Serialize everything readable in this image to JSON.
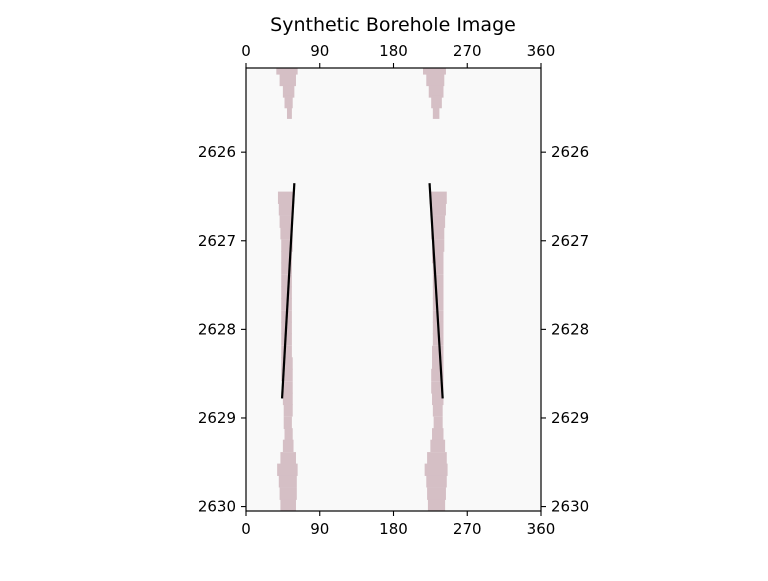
{
  "chart_data": {
    "type": "heatmap",
    "title": "Synthetic Borehole Image",
    "xlabel": "",
    "ylabel": "",
    "xlim": [
      0,
      360
    ],
    "ylim": [
      2630.05,
      2625.05
    ],
    "y_inverted": true,
    "x_ticks": [
      0,
      90,
      180,
      270,
      360
    ],
    "x_tick_labels": [
      "0",
      "90",
      "180",
      "270",
      "360"
    ],
    "y_ticks": [
      2626,
      2627,
      2628,
      2629,
      2630
    ],
    "y_tick_labels": [
      "2626",
      "2627",
      "2628",
      "2629",
      "2630"
    ],
    "ticks_on": [
      "top",
      "bottom",
      "left",
      "right"
    ],
    "grid": false,
    "background_color": "#f9f9f9",
    "feature_color": "#d5bfc5",
    "line_color": "#000000",
    "features": [
      {
        "name": "",
        "bands": [
          {
            "depth": 2625.12,
            "x0": 37,
            "x1": 63
          },
          {
            "depth": 2625.25,
            "x0": 41,
            "x1": 61
          },
          {
            "depth": 2625.38,
            "x0": 45,
            "x1": 59
          },
          {
            "depth": 2625.5,
            "x0": 47,
            "x1": 57
          },
          {
            "depth": 2625.62,
            "x0": 50,
            "x1": 56
          }
        ]
      },
      {
        "name": "",
        "bands": [
          {
            "depth": 2625.12,
            "x0": 216,
            "x1": 244
          },
          {
            "depth": 2625.25,
            "x0": 220,
            "x1": 242
          },
          {
            "depth": 2625.38,
            "x0": 223,
            "x1": 241
          },
          {
            "depth": 2625.5,
            "x0": 226,
            "x1": 239
          },
          {
            "depth": 2625.62,
            "x0": 228,
            "x1": 236
          }
        ]
      },
      {
        "name": "",
        "bands": [
          {
            "depth": 2626.58,
            "x0": 39,
            "x1": 59
          },
          {
            "depth": 2626.71,
            "x0": 40,
            "x1": 58
          },
          {
            "depth": 2626.85,
            "x0": 41,
            "x1": 57
          },
          {
            "depth": 2626.98,
            "x0": 42,
            "x1": 57
          },
          {
            "depth": 2627.12,
            "x0": 43,
            "x1": 57
          },
          {
            "depth": 2627.25,
            "x0": 43,
            "x1": 56
          },
          {
            "depth": 2627.38,
            "x0": 43,
            "x1": 56
          },
          {
            "depth": 2627.52,
            "x0": 43,
            "x1": 56
          },
          {
            "depth": 2627.65,
            "x0": 43,
            "x1": 56
          },
          {
            "depth": 2627.78,
            "x0": 43,
            "x1": 56
          },
          {
            "depth": 2627.92,
            "x0": 43,
            "x1": 56
          },
          {
            "depth": 2628.05,
            "x0": 43,
            "x1": 56
          },
          {
            "depth": 2628.18,
            "x0": 43,
            "x1": 56
          },
          {
            "depth": 2628.32,
            "x0": 43,
            "x1": 56
          },
          {
            "depth": 2628.45,
            "x0": 43,
            "x1": 57
          },
          {
            "depth": 2628.58,
            "x0": 43,
            "x1": 57
          },
          {
            "depth": 2628.72,
            "x0": 44,
            "x1": 57
          },
          {
            "depth": 2628.85,
            "x0": 45,
            "x1": 57
          },
          {
            "depth": 2628.98,
            "x0": 46,
            "x1": 57
          },
          {
            "depth": 2629.12,
            "x0": 46,
            "x1": 56
          },
          {
            "depth": 2629.25,
            "x0": 47,
            "x1": 57
          },
          {
            "depth": 2629.38,
            "x0": 45,
            "x1": 58
          },
          {
            "depth": 2629.52,
            "x0": 42,
            "x1": 61
          },
          {
            "depth": 2629.65,
            "x0": 38,
            "x1": 63
          },
          {
            "depth": 2629.78,
            "x0": 40,
            "x1": 62
          },
          {
            "depth": 2629.92,
            "x0": 41,
            "x1": 62
          },
          {
            "depth": 2630.05,
            "x0": 42,
            "x1": 61
          }
        ]
      },
      {
        "name": "",
        "bands": [
          {
            "depth": 2626.58,
            "x0": 224,
            "x1": 245
          },
          {
            "depth": 2626.71,
            "x0": 225,
            "x1": 244
          },
          {
            "depth": 2626.85,
            "x0": 226,
            "x1": 243
          },
          {
            "depth": 2626.98,
            "x0": 226,
            "x1": 242
          },
          {
            "depth": 2627.12,
            "x0": 227,
            "x1": 242
          },
          {
            "depth": 2627.25,
            "x0": 227,
            "x1": 241
          },
          {
            "depth": 2627.38,
            "x0": 228,
            "x1": 241
          },
          {
            "depth": 2627.52,
            "x0": 228,
            "x1": 241
          },
          {
            "depth": 2627.65,
            "x0": 228,
            "x1": 241
          },
          {
            "depth": 2627.78,
            "x0": 228,
            "x1": 241
          },
          {
            "depth": 2627.92,
            "x0": 228,
            "x1": 241
          },
          {
            "depth": 2628.05,
            "x0": 228,
            "x1": 241
          },
          {
            "depth": 2628.18,
            "x0": 228,
            "x1": 241
          },
          {
            "depth": 2628.32,
            "x0": 227,
            "x1": 241
          },
          {
            "depth": 2628.45,
            "x0": 227,
            "x1": 241
          },
          {
            "depth": 2628.58,
            "x0": 226,
            "x1": 241
          },
          {
            "depth": 2628.72,
            "x0": 226,
            "x1": 241
          },
          {
            "depth": 2628.85,
            "x0": 227,
            "x1": 241
          },
          {
            "depth": 2628.98,
            "x0": 228,
            "x1": 240
          },
          {
            "depth": 2629.12,
            "x0": 229,
            "x1": 240
          },
          {
            "depth": 2629.25,
            "x0": 227,
            "x1": 241
          },
          {
            "depth": 2629.38,
            "x0": 225,
            "x1": 243
          },
          {
            "depth": 2629.52,
            "x0": 221,
            "x1": 245
          },
          {
            "depth": 2629.65,
            "x0": 218,
            "x1": 246
          },
          {
            "depth": 2629.78,
            "x0": 220,
            "x1": 245
          },
          {
            "depth": 2629.92,
            "x0": 221,
            "x1": 244
          },
          {
            "depth": 2630.05,
            "x0": 222,
            "x1": 243
          }
        ]
      }
    ],
    "lines": [
      {
        "name": "",
        "points": [
          [
            59,
            2626.35
          ],
          [
            44,
            2628.78
          ]
        ]
      },
      {
        "name": "",
        "points": [
          [
            224,
            2626.35
          ],
          [
            240,
            2628.78
          ]
        ]
      }
    ]
  }
}
